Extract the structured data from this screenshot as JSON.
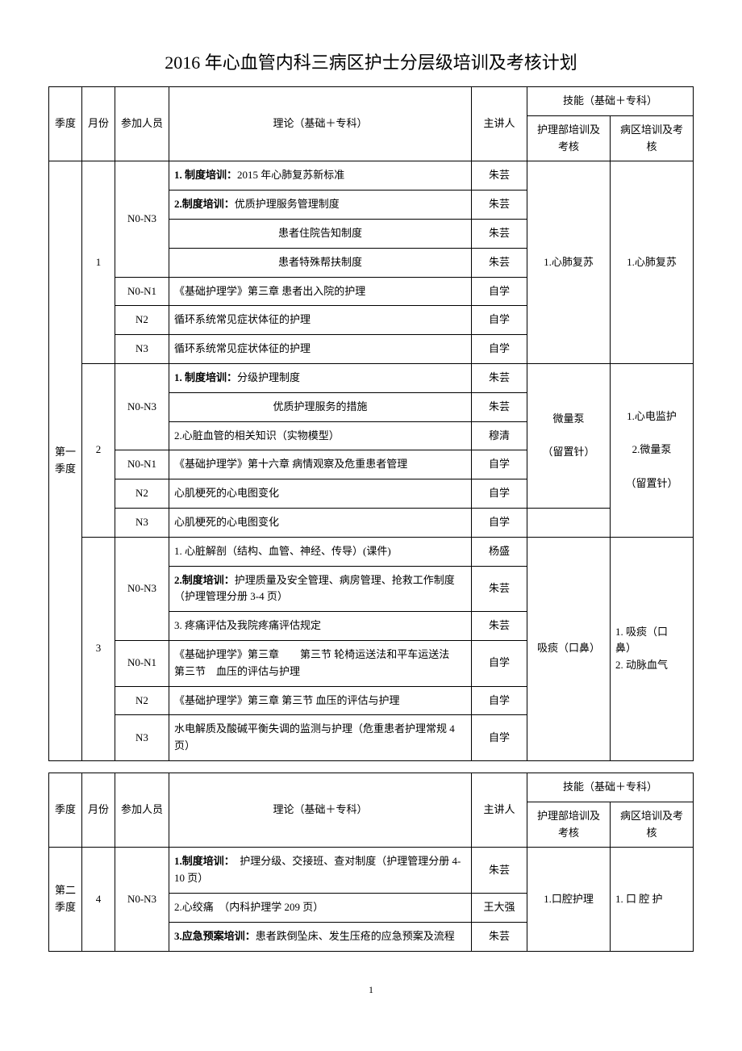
{
  "title": "2016 年心血管内科三病区护士分层级培训及考核计划",
  "headers": {
    "quarter": "季度",
    "month": "月份",
    "participants": "参加人员",
    "theory": "理论（基础＋专科）",
    "speaker": "主讲人",
    "skill_group": "技能（基础＋专科）",
    "skill_dept": "护理部培训及考核",
    "skill_ward": "病区培训及考核"
  },
  "q1_label": "第一季度",
  "q2_label": "第二季度",
  "rows1": [
    {
      "month": "1",
      "level": "N0-N3",
      "theory_bold": "1. 制度培训：",
      "theory": "2015 年心肺复苏新标准",
      "speaker": "朱芸",
      "skill_dept": "1.心肺复苏",
      "skill_ward": "1.心肺复苏"
    },
    {
      "theory_bold": "2.制度培训：",
      "theory": "优质护理服务管理制度",
      "speaker": "朱芸"
    },
    {
      "theory": "患者住院告知制度",
      "speaker": "朱芸"
    },
    {
      "theory": "患者特殊帮扶制度",
      "speaker": "朱芸"
    },
    {
      "level": "N0-N1",
      "theory": "《基础护理学》第三章 患者出入院的护理",
      "speaker": "自学"
    },
    {
      "level": "N2",
      "theory": "循环系统常见症状体征的护理",
      "speaker": "自学"
    },
    {
      "level": "N3",
      "theory": "循环系统常见症状体征的护理",
      "speaker": "自学"
    },
    {
      "month": "2",
      "level": "N0-N3",
      "theory_bold": "1. 制度培训：",
      "theory": "分级护理制度",
      "speaker": "朱芸",
      "skill_dept": "微量泵\n\n（留置针）",
      "skill_ward": "1.心电监护\n\n2.微量泵\n\n（留置针）"
    },
    {
      "theory": "优质护理服务的措施",
      "speaker": "朱芸"
    },
    {
      "theory": "2.心脏血管的相关知识（实物模型）",
      "speaker": "穆清"
    },
    {
      "level": "N0-N1",
      "theory": "《基础护理学》第十六章 病情观察及危重患者管理",
      "speaker": "自学"
    },
    {
      "level": "N2",
      "theory": "心肌梗死的心电图变化",
      "speaker": "自学"
    },
    {
      "level": "N3",
      "theory": "心肌梗死的心电图变化",
      "speaker": "自学"
    },
    {
      "month": "3",
      "level": "N0-N3",
      "theory": "1. 心脏解剖（结构、血管、神经、传导）(课件)",
      "speaker": "杨盛",
      "skill_dept": "吸痰（口鼻）",
      "skill_ward": "1. 吸痰（口鼻）\n2. 动脉血气"
    },
    {
      "theory_bold": "2.制度培训：",
      "theory": "护理质量及安全管理、病房管理、抢救工作制度（护理管理分册 3-4 页）",
      "speaker": "朱芸"
    },
    {
      "theory": "3. 疼痛评估及我院疼痛评估规定",
      "speaker": "朱芸"
    },
    {
      "level": "N0-N1",
      "theory": "《基础护理学》第三章　　第三节 轮椅运送法和平车运送法　　第三节　血压的评估与护理",
      "speaker": "自学"
    },
    {
      "level": "N2",
      "theory": "《基础护理学》第三章 第三节 血压的评估与护理",
      "speaker": "自学"
    },
    {
      "level": "N3",
      "theory": "水电解质及酸碱平衡失调的监测与护理（危重患者护理常规 4 页）",
      "speaker": "自学"
    }
  ],
  "rows2": [
    {
      "month": "4",
      "level": "N0-N3",
      "theory_bold": "1.制度培训：",
      "theory": "　护理分级、交接班、查对制度（护理管理分册 4-10 页）",
      "speaker": "朱芸",
      "skill_dept": "1.口腔护理",
      "skill_ward": "1. 口 腔 护"
    },
    {
      "theory": "2.心绞痛　（内科护理学 209 页）",
      "speaker": "王大强"
    },
    {
      "theory_bold": "3.应急预案培训：",
      "theory": "患者跌倒坠床、发生压疮的应急预案及流程",
      "speaker": "朱芸"
    }
  ],
  "page_number": "1"
}
